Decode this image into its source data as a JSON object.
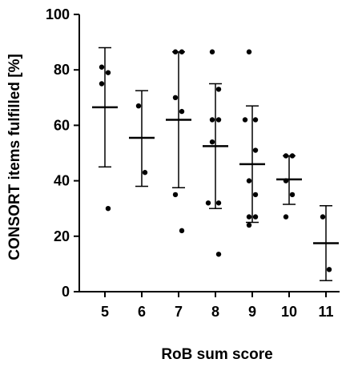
{
  "chart_data": {
    "type": "scatter",
    "xlabel": "RoB sum score",
    "ylabel": "CONSORT items fulfilled [%]",
    "ylim": [
      0,
      100
    ],
    "yticks": [
      0,
      20,
      40,
      60,
      80,
      100
    ],
    "categories": [
      "5",
      "6",
      "7",
      "8",
      "9",
      "10",
      "11"
    ],
    "grid": false,
    "groups": [
      {
        "category": "5",
        "points": [
          81,
          79,
          75,
          30
        ],
        "mean": 66.5,
        "sd_low": 45,
        "sd_high": 88
      },
      {
        "category": "6",
        "points": [
          67,
          43
        ],
        "mean": 55.5,
        "sd_low": 38,
        "sd_high": 72.5
      },
      {
        "category": "7",
        "points": [
          86.5,
          86.5,
          70,
          65,
          35,
          22
        ],
        "mean": 62,
        "sd_low": 37.5,
        "sd_high": 86.5
      },
      {
        "category": "8",
        "points": [
          86.5,
          73,
          62,
          62,
          54,
          32,
          32,
          13.5
        ],
        "mean": 52.5,
        "sd_low": 30,
        "sd_high": 75
      },
      {
        "category": "9",
        "points": [
          86.5,
          62,
          62,
          51,
          40,
          35,
          27,
          27,
          24
        ],
        "mean": 46,
        "sd_low": 25,
        "sd_high": 67
      },
      {
        "category": "10",
        "points": [
          49,
          49,
          40,
          35,
          27
        ],
        "mean": 40.5,
        "sd_low": 31.5,
        "sd_high": 49
      },
      {
        "category": "11",
        "points": [
          27,
          8
        ],
        "mean": 17.5,
        "sd_low": 4,
        "sd_high": 31
      }
    ]
  }
}
